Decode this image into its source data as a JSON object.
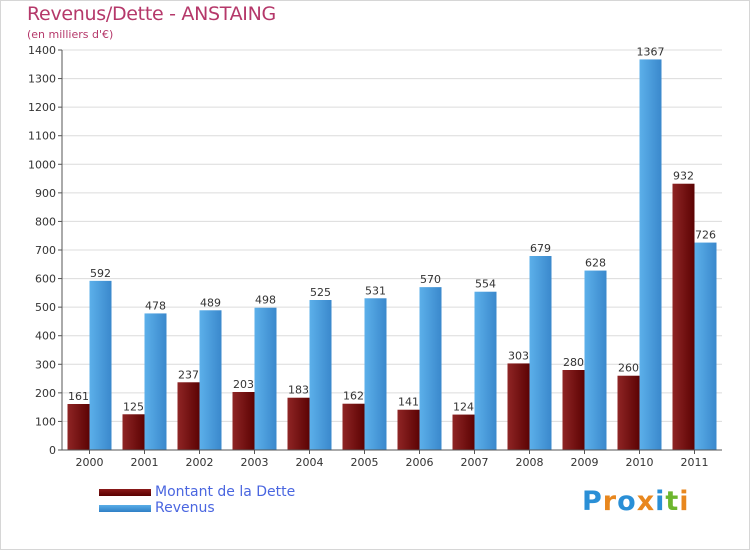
{
  "title": "Revenus/Dette - ANSTAING",
  "subtitle": "(en milliers d'€)",
  "legend": {
    "debt_label": "Montant de la Dette",
    "revenue_label": "Revenus"
  },
  "logo": {
    "text": "Proxiti",
    "colors": [
      "#2a8fd6",
      "#e8871e",
      "#2a8fd6",
      "#e8871e",
      "#2a8fd6",
      "#6cb62e",
      "#e8871e"
    ]
  },
  "colors": {
    "debt": "#6e0a0a",
    "revenue": "#4aa0e0",
    "title": "#b5386a",
    "legend_text": "#4a66e0"
  },
  "chart_data": {
    "type": "bar",
    "categories": [
      "2000",
      "2001",
      "2002",
      "2003",
      "2004",
      "2005",
      "2006",
      "2007",
      "2008",
      "2009",
      "2010",
      "2011"
    ],
    "series": [
      {
        "name": "Montant de la Dette",
        "values": [
          161,
          125,
          237,
          203,
          183,
          162,
          141,
          124,
          303,
          280,
          260,
          932
        ]
      },
      {
        "name": "Revenus",
        "values": [
          592,
          478,
          489,
          498,
          525,
          531,
          570,
          554,
          679,
          628,
          1367,
          726
        ]
      }
    ],
    "ylim": [
      0,
      1400
    ],
    "yticks": [
      0,
      100,
      200,
      300,
      400,
      500,
      600,
      700,
      800,
      900,
      1000,
      1100,
      1200,
      1300,
      1400
    ],
    "grid": true,
    "legend_position": "bottom-left"
  }
}
